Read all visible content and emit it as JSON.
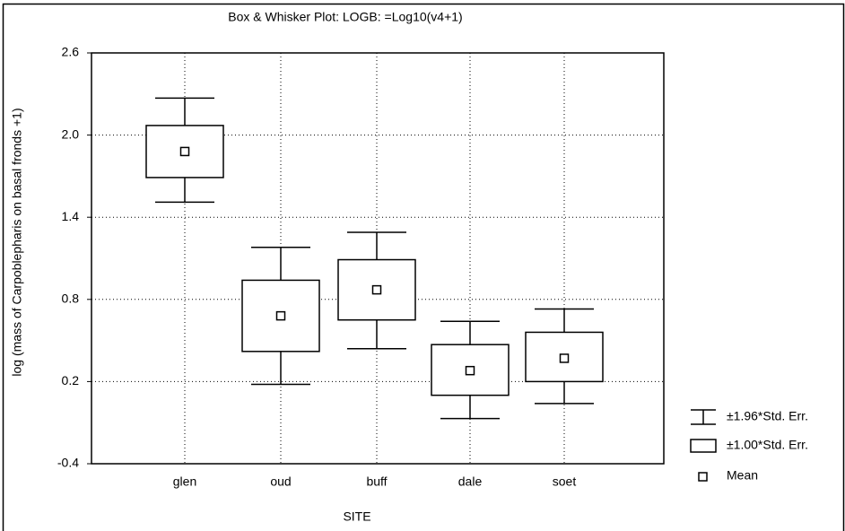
{
  "chart_data": {
    "type": "box",
    "title": "Box & Whisker Plot: LOGB: =Log10(v4+1)",
    "x_label": "SITE",
    "y_label": "log (mass of Carpoblepharis on basal fronds +1)",
    "categories": [
      "glen",
      "oud",
      "buff",
      "dale",
      "soet"
    ],
    "mean": [
      1.88,
      0.68,
      0.87,
      0.28,
      0.37
    ],
    "box_low": [
      1.69,
      0.42,
      0.65,
      0.1,
      0.2
    ],
    "box_high": [
      2.07,
      0.94,
      1.09,
      0.47,
      0.56
    ],
    "whisker_low": [
      1.51,
      0.18,
      0.44,
      -0.07,
      0.04
    ],
    "whisker_high": [
      2.27,
      1.18,
      1.29,
      0.64,
      0.73
    ],
    "legend": {
      "whisker": "±1.96*Std. Err.",
      "box": "±1.00*Std. Err.",
      "mean": "Mean"
    },
    "ylim": [
      -0.4,
      2.6
    ],
    "yticks": [
      -0.4,
      0.2,
      0.8,
      1.4,
      {
        "value": 2,
        "label": "2.0"
      },
      2.6
    ],
    "grid": true
  }
}
